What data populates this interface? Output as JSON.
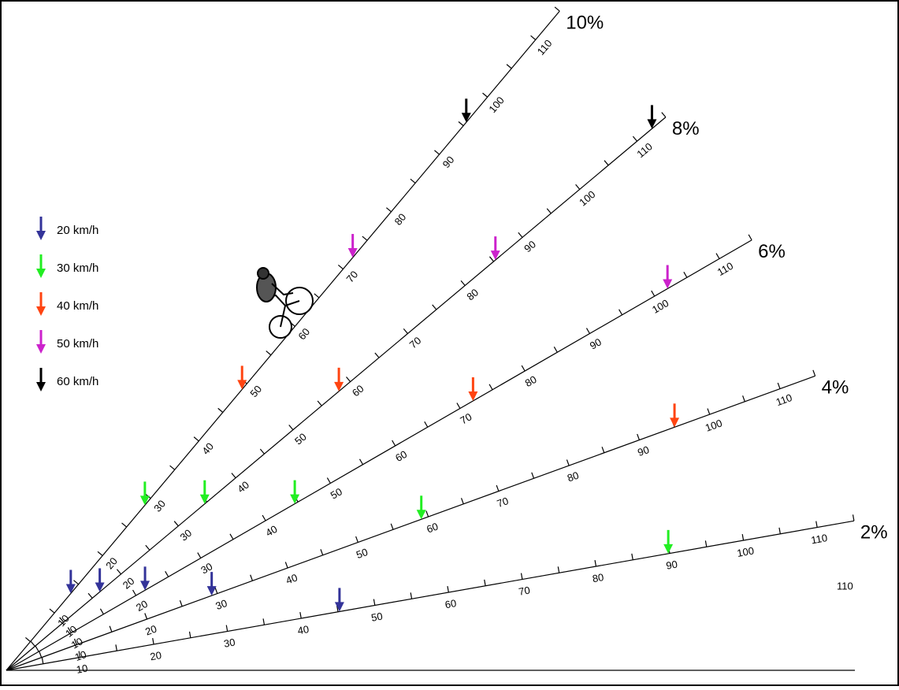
{
  "rays": [
    {
      "label": "10%",
      "arrows": [
        13.4,
        28.8,
        49,
        72,
        95.6
      ]
    },
    {
      "label": "8%",
      "arrows": [
        16.3,
        34.6,
        58,
        85.3,
        112.6
      ]
    },
    {
      "label": "6%",
      "arrows": [
        21.4,
        44.5,
        72,
        102,
        null
      ]
    },
    {
      "label": "4%",
      "arrows": [
        29.2,
        59,
        95,
        null,
        null
      ]
    },
    {
      "label": "2%",
      "arrows": [
        45.2,
        89.8,
        null,
        null,
        null
      ]
    }
  ],
  "ticks": [
    10,
    20,
    30,
    40,
    50,
    60,
    70,
    80,
    90,
    100,
    110
  ],
  "legend": [
    {
      "label": "20 km/h",
      "color": "#333399"
    },
    {
      "label": "30 km/h",
      "color": "#22ee22"
    },
    {
      "label": "40 km/h",
      "color": "#ff4411"
    },
    {
      "label": "50 km/h",
      "color": "#cc22cc"
    },
    {
      "label": "60 km/h",
      "color": "#000000"
    }
  ],
  "stray_label": "110"
}
